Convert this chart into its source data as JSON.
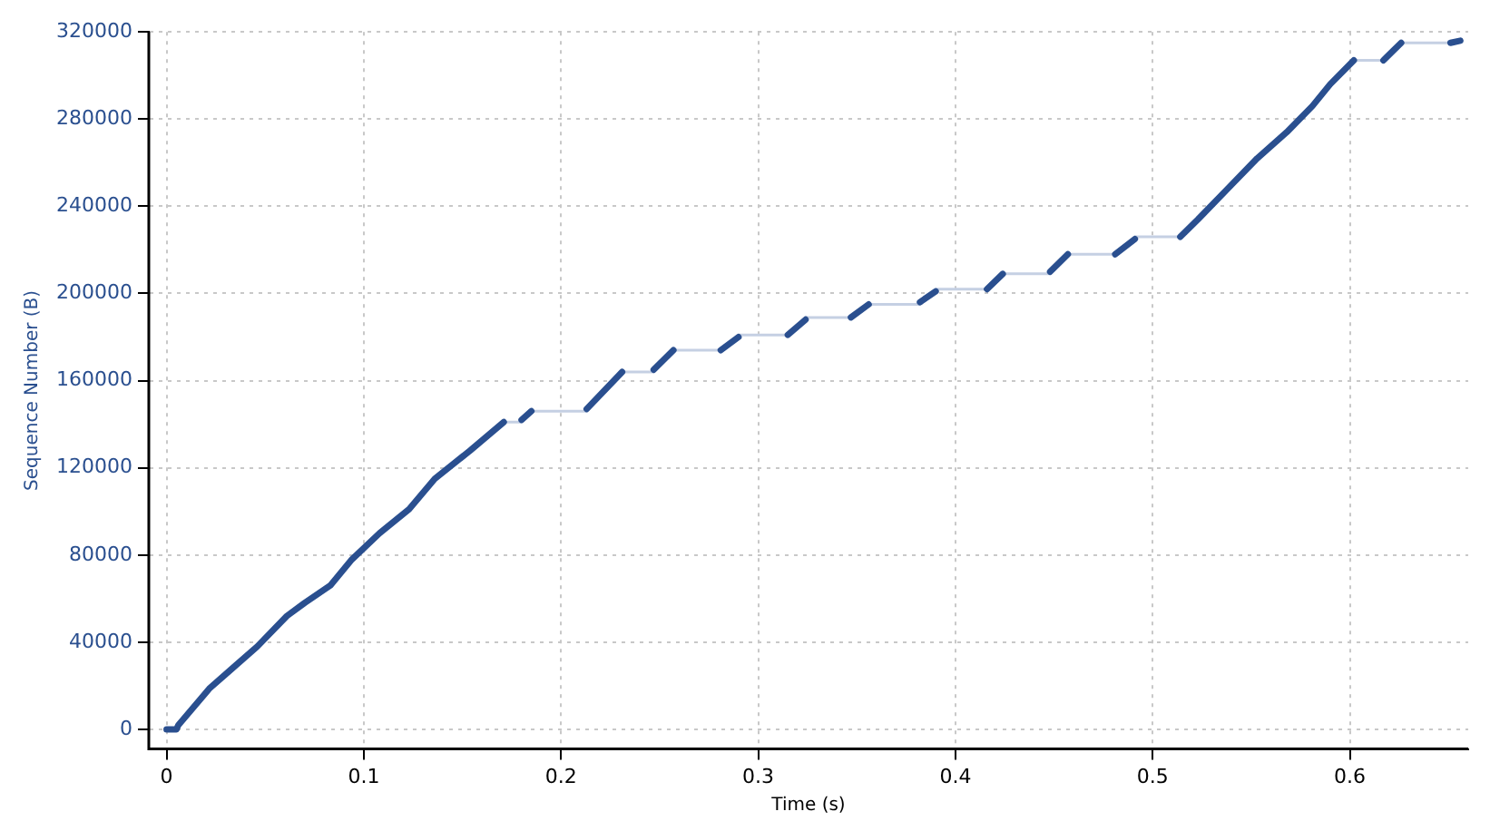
{
  "chart_data": {
    "type": "line",
    "xlabel": "Time (s)",
    "ylabel": "Sequence Number (B)",
    "xlim": [
      -0.009,
      0.66
    ],
    "ylim": [
      -9000,
      320000
    ],
    "xticks": [
      0,
      0.1,
      0.2,
      0.3,
      0.4,
      0.5,
      0.6
    ],
    "yticks": [
      0,
      40000,
      80000,
      120000,
      160000,
      200000,
      240000,
      280000,
      320000
    ],
    "grid": true,
    "marker": "none",
    "series": [
      {
        "color": "#2a4f8f",
        "x": [
          0,
          0.005,
          0.006,
          0.022,
          0.046,
          0.061,
          0.07,
          0.083,
          0.094,
          0.108,
          0.123,
          0.136,
          0.154,
          0.171,
          null,
          0.18,
          0.185,
          null,
          0.213,
          0.231,
          null,
          0.247,
          0.257,
          null,
          0.281,
          0.29,
          null,
          0.315,
          0.324,
          null,
          0.347,
          0.356,
          null,
          0.382,
          0.39,
          null,
          0.416,
          0.424,
          null,
          0.448,
          0.457,
          null,
          0.481,
          0.491,
          null,
          0.514,
          0.523,
          0.538,
          0.553,
          0.568,
          0.581,
          0.59,
          0.602,
          null,
          0.617,
          0.626,
          null,
          0.651,
          0.656
        ],
        "values": [
          0,
          0,
          2000,
          19000,
          38000,
          52000,
          58000,
          66000,
          78000,
          90000,
          101000,
          115000,
          128000,
          141000,
          null,
          142000,
          146000,
          null,
          147000,
          164000,
          null,
          165000,
          174000,
          null,
          174000,
          180000,
          null,
          181000,
          188000,
          null,
          189000,
          195000,
          null,
          196000,
          201000,
          null,
          202000,
          209000,
          null,
          210000,
          218000,
          null,
          218000,
          225000,
          null,
          226000,
          234000,
          248000,
          262000,
          274000,
          286000,
          296000,
          307000,
          null,
          307000,
          315000,
          null,
          315000,
          316000
        ]
      },
      {
        "color": "#c5d0e3",
        "x": [
          0.171,
          0.18,
          null,
          0.185,
          0.213,
          null,
          0.231,
          0.247,
          null,
          0.257,
          0.281,
          null,
          0.29,
          0.315,
          null,
          0.324,
          0.347,
          null,
          0.356,
          0.382,
          null,
          0.39,
          0.416,
          null,
          0.424,
          0.448,
          null,
          0.457,
          0.481,
          null,
          0.491,
          0.514,
          null,
          0.602,
          0.617,
          null,
          0.626,
          0.651
        ],
        "values": [
          141000,
          141000,
          null,
          146000,
          146000,
          null,
          164000,
          164000,
          null,
          174000,
          174000,
          null,
          181000,
          181000,
          null,
          189000,
          189000,
          null,
          195000,
          195000,
          null,
          202000,
          202000,
          null,
          209000,
          209000,
          null,
          218000,
          218000,
          null,
          226000,
          226000,
          null,
          307000,
          307000,
          null,
          315000,
          315000
        ]
      }
    ]
  }
}
